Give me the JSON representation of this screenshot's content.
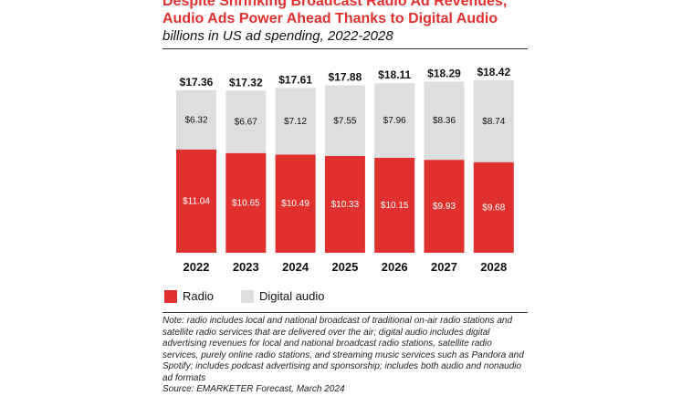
{
  "chart_data": {
    "type": "bar",
    "stacked": true,
    "title": "Despite Shrinking Broadcast Radio Ad Revenues, Audio Ads Power Ahead Thanks to Digital Audio",
    "subtitle": "billions in US ad spending, 2022-2028",
    "categories": [
      "2022",
      "2023",
      "2024",
      "2025",
      "2026",
      "2027",
      "2028"
    ],
    "series": [
      {
        "name": "Radio",
        "color": "#e0312f",
        "values": [
          11.04,
          10.65,
          10.49,
          10.33,
          10.15,
          9.93,
          9.68
        ],
        "labels": [
          "$11.04",
          "$10.65",
          "$10.49",
          "$10.33",
          "$10.15",
          "$9.93",
          "$9.68"
        ]
      },
      {
        "name": "Digital audio",
        "color": "#dedede",
        "values": [
          6.32,
          6.67,
          7.12,
          7.55,
          7.96,
          8.36,
          8.74
        ],
        "labels": [
          "$6.32",
          "$6.67",
          "$7.12",
          "$7.55",
          "$7.96",
          "$8.36",
          "$8.74"
        ]
      }
    ],
    "totals": [
      17.36,
      17.32,
      17.61,
      17.88,
      18.11,
      18.29,
      18.42
    ],
    "total_labels": [
      "$17.36",
      "$17.32",
      "$17.61",
      "$17.88",
      "$18.11",
      "$18.29",
      "$18.42"
    ],
    "ylim": [
      0,
      18.42
    ],
    "xlabel": "",
    "ylabel": ""
  },
  "title_line1": "Despite Shrinking Broadcast Radio Ad Revenues,",
  "title_line2": "Audio Ads Power Ahead Thanks to Digital Audio",
  "subtitle": "billions in US ad spending, 2022-2028",
  "legend": {
    "radio": "Radio",
    "digital": "Digital audio"
  },
  "note": "Note: radio includes local and national broadcast of traditional on-air radio stations and satellite radio services that are delivered over the air; digital audio includes digital advertising revenues for local and national broadcast radio stations, satellite radio services, purely online radio stations, and streaming music services such as Pandora and Spotify; includes podcast advertising and sponsorship; includes both audio and nonaudio ad formats",
  "source": "Source: EMARKETER Forecast, March 2024"
}
